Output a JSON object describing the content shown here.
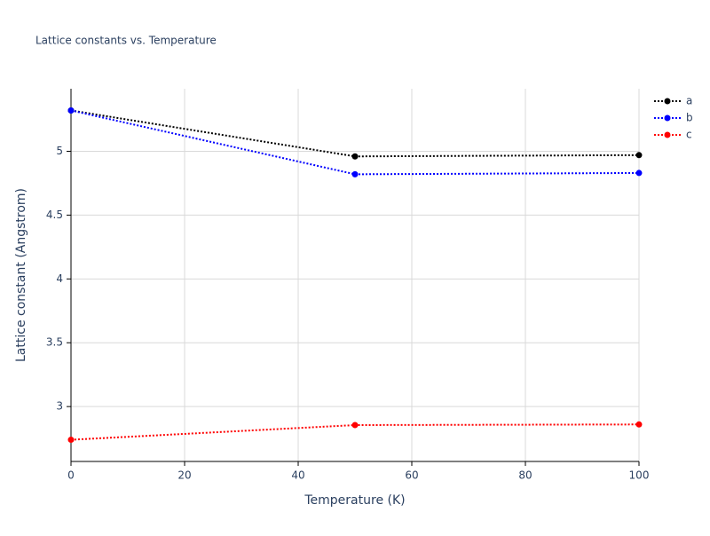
{
  "chart_data": {
    "type": "line",
    "title": "Lattice constants vs. Temperature",
    "x_label": "Temperature (K)",
    "y_label": "Lattice constant (Angstrom)",
    "x": [
      0,
      50,
      100
    ],
    "series": [
      {
        "name": "a",
        "color": "#000000",
        "values": [
          5.32,
          4.96,
          4.97
        ]
      },
      {
        "name": "b",
        "color": "#0000ff",
        "values": [
          5.32,
          4.82,
          4.83
        ]
      },
      {
        "name": "c",
        "color": "#ff0000",
        "values": [
          2.74,
          2.855,
          2.86
        ]
      }
    ],
    "xlim": [
      0,
      100
    ],
    "xticks": [
      0,
      20,
      40,
      60,
      80,
      100
    ],
    "ylim": [
      2.57,
      5.49
    ],
    "yticks": [
      3,
      3.5,
      4,
      4.5,
      5
    ],
    "grid": true,
    "legend": "top-right",
    "line_style": "dotted"
  }
}
